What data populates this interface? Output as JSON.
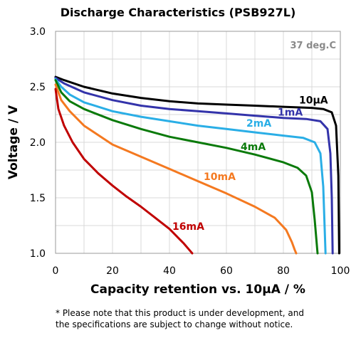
{
  "chart_data": {
    "type": "line",
    "title": "Discharge Characteristics (PSB927L)",
    "xlabel": "Capacity retention vs. 10µA / %",
    "ylabel": "Voltage / V",
    "xlim": [
      0,
      100
    ],
    "ylim": [
      1.0,
      3.0
    ],
    "x_ticks": [
      "0",
      "20",
      "40",
      "60",
      "80",
      "100"
    ],
    "y_ticks": [
      "1.0",
      "1.5",
      "2.0",
      "2.5",
      "3.0"
    ],
    "grid": true,
    "annotation": "37 deg.C",
    "series": [
      {
        "name": "10µA",
        "color": "#000000",
        "points": [
          [
            0,
            2.59
          ],
          [
            3,
            2.56
          ],
          [
            10,
            2.5
          ],
          [
            20,
            2.44
          ],
          [
            30,
            2.4
          ],
          [
            40,
            2.37
          ],
          [
            50,
            2.35
          ],
          [
            60,
            2.34
          ],
          [
            70,
            2.33
          ],
          [
            80,
            2.32
          ],
          [
            90,
            2.31
          ],
          [
            94,
            2.3
          ],
          [
            97,
            2.27
          ],
          [
            98.5,
            2.15
          ],
          [
            99.3,
            1.7
          ],
          [
            99.6,
            1.0
          ]
        ]
      },
      {
        "name": "1mA",
        "color": "#3333aa",
        "points": [
          [
            0,
            2.58
          ],
          [
            3,
            2.53
          ],
          [
            10,
            2.45
          ],
          [
            20,
            2.38
          ],
          [
            30,
            2.33
          ],
          [
            40,
            2.3
          ],
          [
            50,
            2.28
          ],
          [
            60,
            2.26
          ],
          [
            70,
            2.24
          ],
          [
            80,
            2.22
          ],
          [
            88,
            2.21
          ],
          [
            93,
            2.19
          ],
          [
            95.5,
            2.12
          ],
          [
            96.5,
            1.9
          ],
          [
            97,
            1.5
          ],
          [
            97.3,
            1.0
          ]
        ]
      },
      {
        "name": "2mA",
        "color": "#2aaee6",
        "points": [
          [
            0,
            2.57
          ],
          [
            2,
            2.5
          ],
          [
            5,
            2.43
          ],
          [
            10,
            2.36
          ],
          [
            20,
            2.28
          ],
          [
            30,
            2.23
          ],
          [
            40,
            2.19
          ],
          [
            50,
            2.15
          ],
          [
            60,
            2.12
          ],
          [
            70,
            2.09
          ],
          [
            80,
            2.06
          ],
          [
            87,
            2.04
          ],
          [
            91,
            2.0
          ],
          [
            93,
            1.9
          ],
          [
            94,
            1.6
          ],
          [
            94.8,
            1.0
          ]
        ]
      },
      {
        "name": "4mA",
        "color": "#0a7a0a",
        "points": [
          [
            0,
            2.56
          ],
          [
            2,
            2.45
          ],
          [
            5,
            2.37
          ],
          [
            10,
            2.3
          ],
          [
            20,
            2.2
          ],
          [
            30,
            2.12
          ],
          [
            40,
            2.05
          ],
          [
            50,
            2.0
          ],
          [
            60,
            1.95
          ],
          [
            70,
            1.89
          ],
          [
            80,
            1.82
          ],
          [
            85,
            1.77
          ],
          [
            88,
            1.7
          ],
          [
            90,
            1.55
          ],
          [
            91,
            1.3
          ],
          [
            92,
            1.0
          ]
        ]
      },
      {
        "name": "10mA",
        "color": "#f47920",
        "points": [
          [
            0,
            2.52
          ],
          [
            2,
            2.38
          ],
          [
            5,
            2.28
          ],
          [
            10,
            2.15
          ],
          [
            20,
            1.98
          ],
          [
            30,
            1.87
          ],
          [
            40,
            1.76
          ],
          [
            50,
            1.65
          ],
          [
            60,
            1.54
          ],
          [
            70,
            1.42
          ],
          [
            77,
            1.32
          ],
          [
            81,
            1.21
          ],
          [
            83,
            1.1
          ],
          [
            84,
            1.03
          ],
          [
            84.5,
            1.0
          ]
        ]
      },
      {
        "name": "16mA",
        "color": "#c00000",
        "points": [
          [
            0,
            2.48
          ],
          [
            1,
            2.3
          ],
          [
            3,
            2.15
          ],
          [
            6,
            2.0
          ],
          [
            10,
            1.85
          ],
          [
            15,
            1.72
          ],
          [
            20,
            1.61
          ],
          [
            25,
            1.51
          ],
          [
            30,
            1.42
          ],
          [
            35,
            1.32
          ],
          [
            40,
            1.22
          ],
          [
            45,
            1.09
          ],
          [
            47,
            1.03
          ],
          [
            48,
            1.0
          ]
        ]
      }
    ]
  },
  "note_line1": "* Please note that this product is under development, and",
  "note_line2": "the specifications are subject to change without notice."
}
